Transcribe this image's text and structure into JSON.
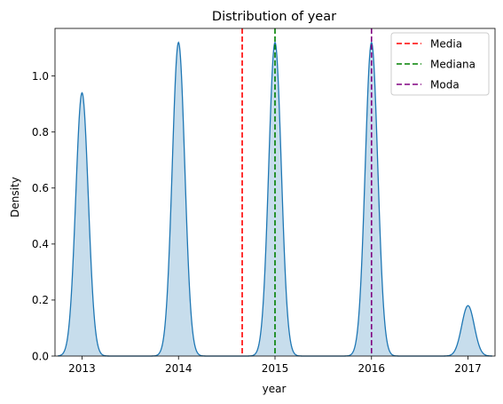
{
  "chart_data": {
    "type": "area",
    "title": "Distribution of year",
    "xlabel": "year",
    "ylabel": "Density",
    "xlim": [
      2012.72,
      2017.28
    ],
    "ylim": [
      0,
      1.17
    ],
    "xticks": [
      2013,
      2014,
      2015,
      2016,
      2017
    ],
    "yticks": [
      0.0,
      0.2,
      0.4,
      0.6,
      0.8,
      1.0
    ],
    "ytick_labels": [
      "0.0",
      "0.2",
      "0.4",
      "0.6",
      "0.8",
      "1.0"
    ],
    "grid": false,
    "legend_position": "top-right",
    "series": [
      {
        "kind": "kde",
        "color": "#1f77b4",
        "fill_color": "#1f77b4",
        "fill_opacity": 0.25,
        "peaks": [
          {
            "x": 2013,
            "density": 0.94
          },
          {
            "x": 2014,
            "density": 1.12
          },
          {
            "x": 2015,
            "density": 1.12
          },
          {
            "x": 2016,
            "density": 1.12
          },
          {
            "x": 2017,
            "density": 0.18
          }
        ],
        "bandwidth": 0.065
      }
    ],
    "reference_lines": [
      {
        "name": "Media",
        "x": 2014.66,
        "color": "#ff0000",
        "style": "dashed"
      },
      {
        "name": "Mediana",
        "x": 2015.0,
        "color": "#008000",
        "style": "dashed"
      },
      {
        "name": "Moda",
        "x": 2016.0,
        "color": "#800080",
        "style": "dashed"
      }
    ]
  }
}
